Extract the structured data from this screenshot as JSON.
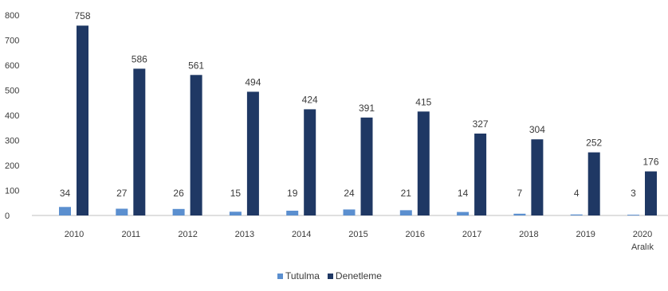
{
  "chart_data": {
    "type": "bar",
    "categories": [
      "2010",
      "2011",
      "2012",
      "2013",
      "2014",
      "2015",
      "2016",
      "2017",
      "2018",
      "2019",
      "2020 Aralık"
    ],
    "series": [
      {
        "name": "Tutulma",
        "values": [
          34,
          27,
          26,
          15,
          19,
          24,
          21,
          14,
          7,
          4,
          3
        ],
        "color": "#5b8fcf"
      },
      {
        "name": "Denetleme",
        "values": [
          758,
          586,
          561,
          494,
          424,
          391,
          415,
          327,
          304,
          252,
          176
        ],
        "color": "#1f3864"
      }
    ],
    "yticks": [
      "0",
      "100",
      "200",
      "300",
      "400",
      "500",
      "600",
      "700",
      "800"
    ],
    "ylim": [
      0,
      800
    ],
    "title": "",
    "xlabel": "",
    "ylabel": "",
    "legend_position": "bottom",
    "grid": false
  }
}
